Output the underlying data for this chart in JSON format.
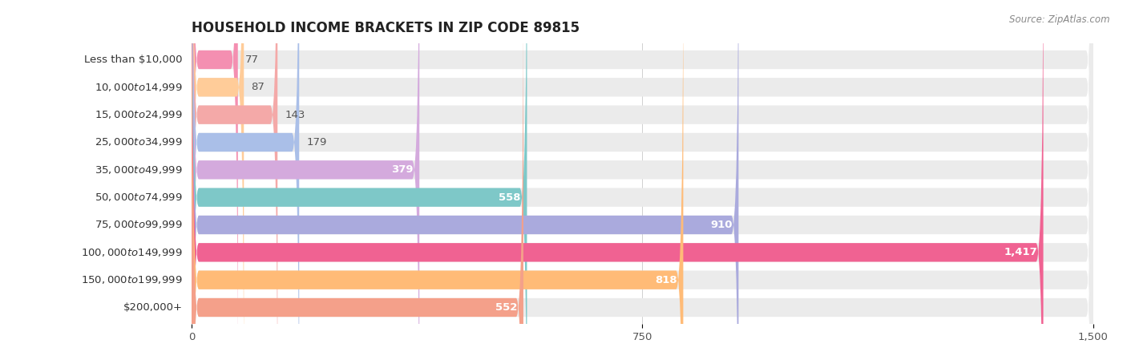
{
  "title": "HOUSEHOLD INCOME BRACKETS IN ZIP CODE 89815",
  "source": "Source: ZipAtlas.com",
  "categories": [
    "Less than $10,000",
    "$10,000 to $14,999",
    "$15,000 to $24,999",
    "$25,000 to $34,999",
    "$35,000 to $49,999",
    "$50,000 to $74,999",
    "$75,000 to $99,999",
    "$100,000 to $149,999",
    "$150,000 to $199,999",
    "$200,000+"
  ],
  "values": [
    77,
    87,
    143,
    179,
    379,
    558,
    910,
    1417,
    818,
    552
  ],
  "bar_colors": [
    "#F48FB1",
    "#FFCC99",
    "#F4A9A8",
    "#AABFE8",
    "#D4AADD",
    "#7EC8C8",
    "#AAAADD",
    "#F06292",
    "#FFBB77",
    "#F4A08A"
  ],
  "xlim": [
    0,
    1500
  ],
  "xticks": [
    0,
    750,
    1500
  ],
  "label_fontsize": 9.5,
  "title_fontsize": 12,
  "value_label_inside_color": "#ffffff",
  "value_label_outside_color": "#555555",
  "bg_color": "#ffffff",
  "bar_bg_color": "#ebebeb",
  "bar_height": 0.68,
  "inside_threshold": 300
}
